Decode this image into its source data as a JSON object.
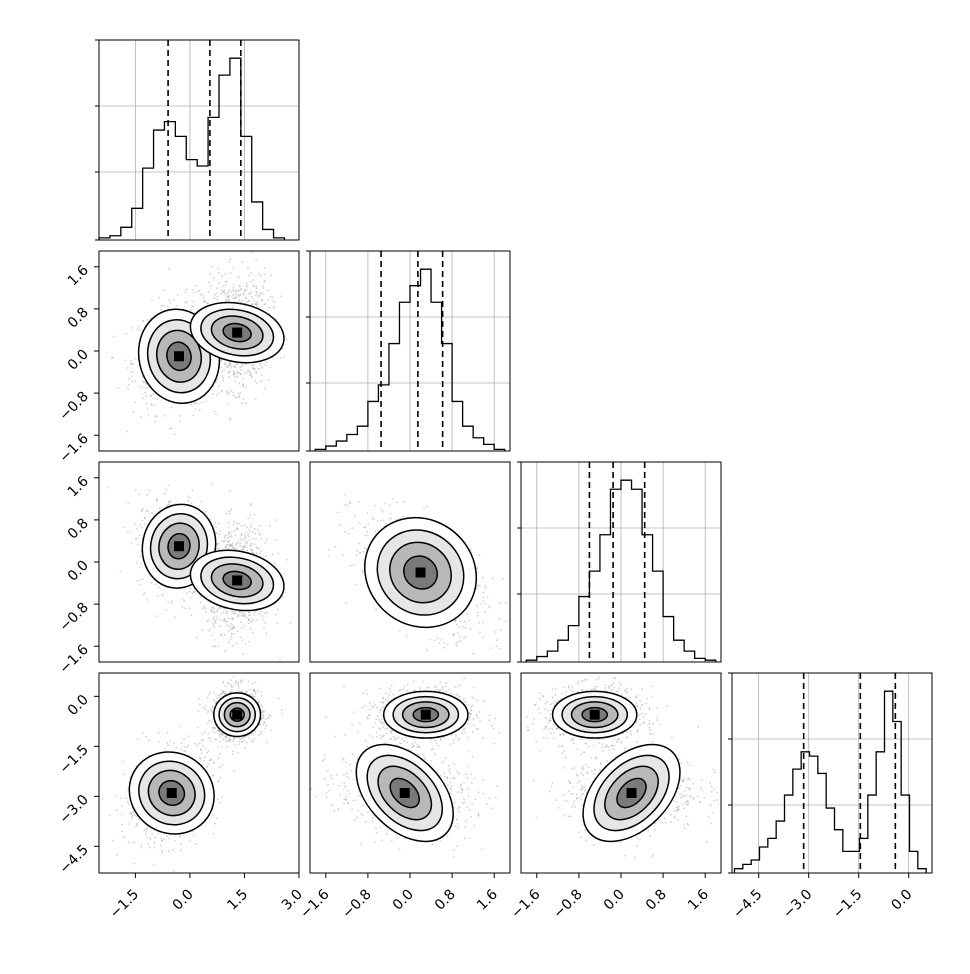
{
  "chart_data": {
    "type": "corner",
    "parameters": 4,
    "quantile_lines": [
      [
        -0.6,
        0.55,
        1.4
      ],
      [
        -0.55,
        0.15,
        0.62
      ],
      [
        -0.6,
        -0.15,
        0.45
      ],
      [
        -3.15,
        -1.45,
        -0.4
      ]
    ],
    "axis_ranges": [
      [
        -2.5,
        3.0
      ],
      [
        -1.9,
        1.9
      ],
      [
        -1.9,
        1.9
      ],
      [
        -5.3,
        0.7
      ]
    ],
    "ticks": [
      [
        "-1.5",
        "0.0",
        "1.5",
        "3.0"
      ],
      [
        "-1.6",
        "-0.8",
        "0.0",
        "0.8",
        "1.6"
      ],
      [
        "-1.6",
        "-0.8",
        "0.0",
        "0.8",
        "1.6"
      ],
      [
        "-4.5",
        "-3.0",
        "-1.5",
        "0.0"
      ]
    ],
    "tick_values": [
      [
        -1.5,
        0.0,
        1.5,
        3.0
      ],
      [
        -1.6,
        -0.8,
        0.0,
        0.8,
        1.6
      ],
      [
        -1.6,
        -0.8,
        0.0,
        0.8,
        1.6
      ],
      [
        -4.5,
        -3.0,
        -1.5,
        0.0
      ]
    ],
    "histograms": [
      {
        "x": [
          -2.35,
          -2.05,
          -1.75,
          -1.45,
          -1.15,
          -0.85,
          -0.55,
          -0.25,
          0.05,
          0.35,
          0.65,
          0.95,
          1.25,
          1.55,
          1.85,
          2.15,
          2.45
        ],
        "counts": [
          1,
          2,
          6,
          15,
          34,
          52,
          56,
          49,
          38,
          35,
          58,
          78,
          86,
          49,
          18,
          5,
          1
        ]
      },
      {
        "x": [
          -1.7,
          -1.5,
          -1.3,
          -1.1,
          -0.9,
          -0.7,
          -0.5,
          -0.3,
          -0.1,
          0.1,
          0.3,
          0.5,
          0.7,
          0.9,
          1.1,
          1.3,
          1.5,
          1.7
        ],
        "counts": [
          1,
          3,
          6,
          10,
          15,
          30,
          40,
          65,
          90,
          100,
          110,
          90,
          65,
          30,
          15,
          8,
          4,
          1
        ]
      },
      {
        "x": [
          -1.7,
          -1.5,
          -1.3,
          -1.1,
          -0.9,
          -0.7,
          -0.5,
          -0.3,
          -0.1,
          0.1,
          0.3,
          0.5,
          0.7,
          0.9,
          1.1,
          1.3,
          1.5,
          1.7
        ],
        "counts": [
          1,
          3,
          6,
          12,
          20,
          36,
          50,
          70,
          95,
          100,
          95,
          70,
          50,
          25,
          12,
          6,
          2,
          1
        ]
      },
      {
        "x": [
          -5.1,
          -4.85,
          -4.6,
          -4.35,
          -4.1,
          -3.85,
          -3.6,
          -3.35,
          -3.1,
          -2.85,
          -2.6,
          -2.35,
          -2.1,
          -1.85,
          -1.6,
          -1.35,
          -1.1,
          -0.85,
          -0.6,
          -0.35,
          -0.1,
          0.15,
          0.4
        ],
        "counts": [
          2,
          4,
          6,
          12,
          16,
          24,
          36,
          48,
          56,
          54,
          46,
          30,
          20,
          10,
          10,
          16,
          36,
          56,
          84,
          70,
          36,
          10,
          2
        ]
      }
    ],
    "blobs": [
      [
        {
          "row": 1,
          "col": 0,
          "cx": -0.3,
          "cy": -0.1,
          "sx": 0.55,
          "sy": 0.45,
          "rho": 0.1,
          "w": 1
        },
        {
          "row": 1,
          "col": 0,
          "cx": 1.3,
          "cy": 0.35,
          "sx": 0.4,
          "sy": 0.45,
          "rho": 0.05,
          "w": 1.35
        },
        {
          "row": 2,
          "col": 0,
          "cx": -0.3,
          "cy": 0.3,
          "sx": 0.5,
          "sy": 0.4,
          "rho": -0.1,
          "w": 1
        },
        {
          "row": 2,
          "col": 0,
          "cx": 1.3,
          "cy": -0.35,
          "sx": 0.4,
          "sy": 0.45,
          "rho": 0.05,
          "w": 1.35
        },
        {
          "row": 2,
          "col": 1,
          "cx": 0.2,
          "cy": -0.2,
          "sx": 0.55,
          "sy": 0.5,
          "rho": -0.55,
          "w": 1
        },
        {
          "row": 3,
          "col": 0,
          "cx": -0.5,
          "cy": -2.9,
          "sx": 0.55,
          "sy": 0.65,
          "rho": 0.35,
          "w": 1
        },
        {
          "row": 3,
          "col": 0,
          "cx": 1.3,
          "cy": -0.55,
          "sx": 0.3,
          "sy": 0.35,
          "rho": 0.0,
          "w": 1.35
        },
        {
          "row": 3,
          "col": 1,
          "cx": -0.1,
          "cy": -2.9,
          "sx": 0.55,
          "sy": 0.55,
          "rho": -0.2,
          "w": 1
        },
        {
          "row": 3,
          "col": 1,
          "cx": 0.3,
          "cy": -0.55,
          "sx": 0.4,
          "sy": 0.35,
          "rho": 0.0,
          "w": 1.35
        },
        {
          "row": 3,
          "col": 2,
          "cx": 0.2,
          "cy": -2.9,
          "sx": 0.55,
          "sy": 0.55,
          "rho": 0.1,
          "w": 1
        },
        {
          "row": 3,
          "col": 2,
          "cx": -0.5,
          "cy": -0.55,
          "sx": 0.4,
          "sy": 0.35,
          "rho": 0.0,
          "w": 1.35
        }
      ]
    ],
    "grid": true,
    "colors": {
      "line": "#000000",
      "grid": "#b0b0b0",
      "scatter": "#9a9a9a",
      "density_light": "#f2f2f2",
      "density_dark": "#000000"
    }
  }
}
